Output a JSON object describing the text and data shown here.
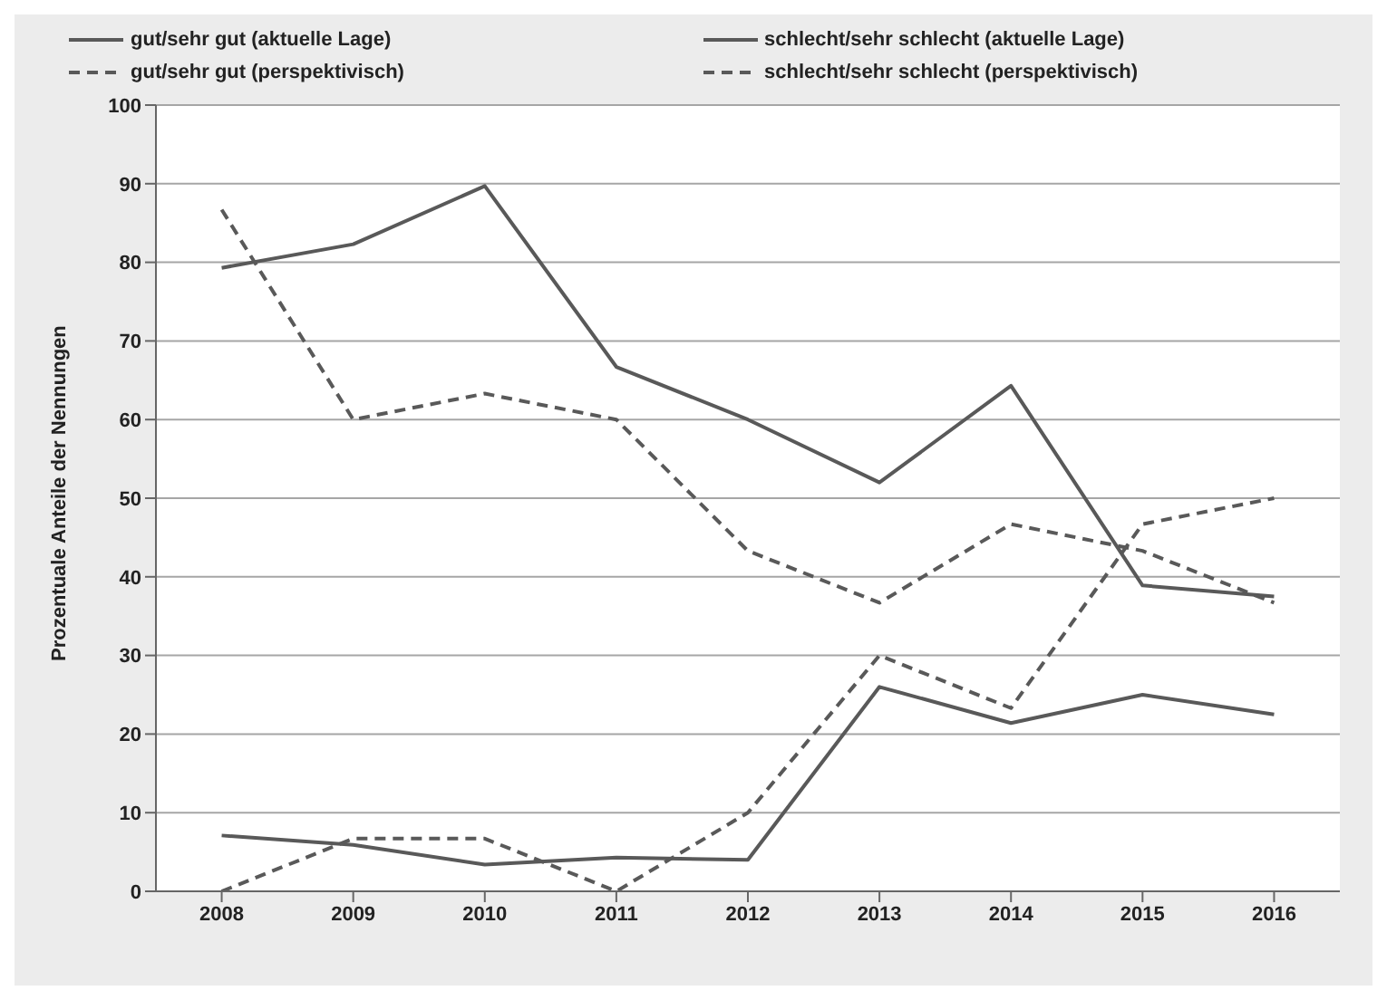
{
  "chart_data": {
    "type": "line",
    "ylabel": "Prozentuale Anteile der Nennungen",
    "categories": [
      "2008",
      "2009",
      "2010",
      "2011",
      "2012",
      "2013",
      "2014",
      "2015",
      "2016"
    ],
    "series": [
      {
        "name": "gut/sehr gut (aktuelle Lage)",
        "color": "#595959",
        "line_style": "solid",
        "values": [
          79.3,
          82.3,
          89.7,
          66.7,
          60,
          52,
          64.3,
          38.9,
          37.5
        ]
      },
      {
        "name": "schlecht/sehr schlecht (aktuelle Lage)",
        "color": "#595959",
        "line_style": "solid",
        "values": [
          7.1,
          5.9,
          3.4,
          4.3,
          4,
          26,
          21.4,
          25,
          22.5
        ]
      },
      {
        "name": "gut/sehr gut (perspektivisch)",
        "color": "#595959",
        "line_style": "dashed",
        "values": [
          86.7,
          60,
          63.3,
          60,
          43.3,
          36.7,
          46.7,
          43.3,
          36.7
        ]
      },
      {
        "name": "schlecht/sehr schlecht (perspektivisch)",
        "color": "#595959",
        "line_style": "dashed",
        "values": [
          0,
          6.7,
          6.7,
          0,
          10,
          30,
          23.3,
          46.7,
          50
        ]
      }
    ],
    "ylim": [
      0,
      100
    ],
    "yticks": [
      0,
      10,
      20,
      30,
      40,
      50,
      60,
      70,
      80,
      90,
      100
    ],
    "grid": "y",
    "legend": "top",
    "marker": "none"
  }
}
